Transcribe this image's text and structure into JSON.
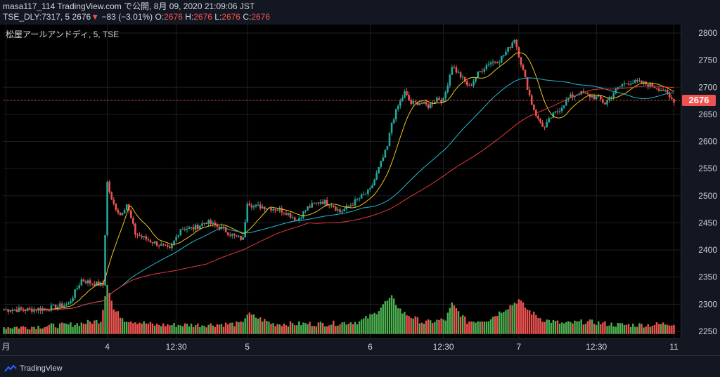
{
  "header": {
    "line1": "masa117_114 TradingView.com で公開, 8月 09, 2020 21:09:06 JST",
    "line2_prefix": "TSE_DLY:7317, 5 2676",
    "line2_arrow": "▼",
    "line2_change": "−83 (−3.01%)",
    "o_label": "O:",
    "o_value": "2676",
    "h_label": "H:",
    "h_value": "2676",
    "l_label": "L:",
    "l_value": "2676",
    "c_label": "C:",
    "c_value": "2676"
  },
  "symbol_label": "松屋アールアンドディ, 5, TSE",
  "footer": {
    "brand": "TradingView"
  },
  "current_price": {
    "label": "2676",
    "value": 2676
  },
  "colors": {
    "up": "#26a69a",
    "down": "#ef5350",
    "ma_fast": "#f0c419",
    "ma_mid": "#26b8d6",
    "ma_slow": "#e53935",
    "vol_up": "#4caf50",
    "vol_down": "#ef5350"
  },
  "chart_data": {
    "type": "candlestick",
    "title": "",
    "ylim": [
      2245,
      2815
    ],
    "y_ticks": [
      2250,
      2300,
      2350,
      2400,
      2450,
      2500,
      2550,
      2600,
      2650,
      2700,
      2750,
      2800
    ],
    "x_tick_labels": [
      {
        "label": "月",
        "index": 1
      },
      {
        "label": "4",
        "index": 48
      },
      {
        "label": "12:30",
        "index": 80
      },
      {
        "label": "5",
        "index": 113
      },
      {
        "label": "6",
        "index": 170
      },
      {
        "label": "12:30",
        "index": 204
      },
      {
        "label": "7",
        "index": 239
      },
      {
        "label": "12:30",
        "index": 275
      },
      {
        "label": "11",
        "index": 311
      }
    ],
    "close_anchors": [
      [
        0,
        2290
      ],
      [
        10,
        2290
      ],
      [
        20,
        2292
      ],
      [
        30,
        2300
      ],
      [
        36,
        2345
      ],
      [
        40,
        2340
      ],
      [
        46,
        2335
      ],
      [
        48,
        2525
      ],
      [
        50,
        2490
      ],
      [
        54,
        2465
      ],
      [
        57,
        2485
      ],
      [
        61,
        2430
      ],
      [
        66,
        2420
      ],
      [
        72,
        2410
      ],
      [
        77,
        2400
      ],
      [
        82,
        2440
      ],
      [
        88,
        2440
      ],
      [
        94,
        2452
      ],
      [
        101,
        2440
      ],
      [
        107,
        2425
      ],
      [
        111,
        2420
      ],
      [
        113,
        2490
      ],
      [
        116,
        2480
      ],
      [
        120,
        2480
      ],
      [
        127,
        2475
      ],
      [
        131,
        2470
      ],
      [
        136,
        2455
      ],
      [
        141,
        2478
      ],
      [
        147,
        2490
      ],
      [
        152,
        2485
      ],
      [
        156,
        2470
      ],
      [
        160,
        2480
      ],
      [
        165,
        2495
      ],
      [
        170,
        2510
      ],
      [
        174,
        2550
      ],
      [
        178,
        2590
      ],
      [
        180,
        2635
      ],
      [
        183,
        2665
      ],
      [
        186,
        2690
      ],
      [
        189,
        2670
      ],
      [
        193,
        2672
      ],
      [
        197,
        2665
      ],
      [
        201,
        2680
      ],
      [
        204,
        2675
      ],
      [
        208,
        2740
      ],
      [
        212,
        2720
      ],
      [
        216,
        2700
      ],
      [
        220,
        2725
      ],
      [
        225,
        2745
      ],
      [
        230,
        2750
      ],
      [
        234,
        2770
      ],
      [
        237,
        2790
      ],
      [
        239,
        2760
      ],
      [
        241,
        2730
      ],
      [
        243,
        2700
      ],
      [
        245,
        2670
      ],
      [
        248,
        2640
      ],
      [
        251,
        2625
      ],
      [
        254,
        2645
      ],
      [
        258,
        2660
      ],
      [
        262,
        2680
      ],
      [
        267,
        2690
      ],
      [
        271,
        2685
      ],
      [
        276,
        2680
      ],
      [
        279,
        2670
      ],
      [
        283,
        2690
      ],
      [
        287,
        2705
      ],
      [
        291,
        2710
      ],
      [
        295,
        2708
      ],
      [
        299,
        2705
      ],
      [
        303,
        2700
      ],
      [
        306,
        2695
      ],
      [
        309,
        2680
      ],
      [
        311,
        2676
      ]
    ],
    "volume_anchors": [
      [
        0,
        2258
      ],
      [
        10,
        2258
      ],
      [
        20,
        2260
      ],
      [
        30,
        2262
      ],
      [
        38,
        2266
      ],
      [
        45,
        2270
      ],
      [
        48,
        2340
      ],
      [
        51,
        2290
      ],
      [
        56,
        2272
      ],
      [
        70,
        2262
      ],
      [
        90,
        2262
      ],
      [
        110,
        2264
      ],
      [
        113,
        2282
      ],
      [
        125,
        2264
      ],
      [
        150,
        2264
      ],
      [
        165,
        2268
      ],
      [
        172,
        2282
      ],
      [
        176,
        2300
      ],
      [
        180,
        2312
      ],
      [
        185,
        2285
      ],
      [
        195,
        2266
      ],
      [
        205,
        2272
      ],
      [
        208,
        2300
      ],
      [
        215,
        2268
      ],
      [
        225,
        2272
      ],
      [
        232,
        2290
      ],
      [
        236,
        2300
      ],
      [
        239,
        2308
      ],
      [
        243,
        2290
      ],
      [
        250,
        2272
      ],
      [
        260,
        2264
      ],
      [
        270,
        2268
      ],
      [
        285,
        2262
      ],
      [
        300,
        2262
      ],
      [
        311,
        2265
      ]
    ],
    "volume_y_cap": 2295,
    "candles": 312,
    "series": [
      {
        "name": "",
        "type": "ma",
        "period": 12,
        "color": "#f0c419"
      },
      {
        "name": "",
        "type": "ma",
        "period": 55,
        "color": "#26b8d6"
      },
      {
        "name": "",
        "type": "ma",
        "period": 95,
        "color": "#e53935"
      }
    ],
    "grid": true
  }
}
